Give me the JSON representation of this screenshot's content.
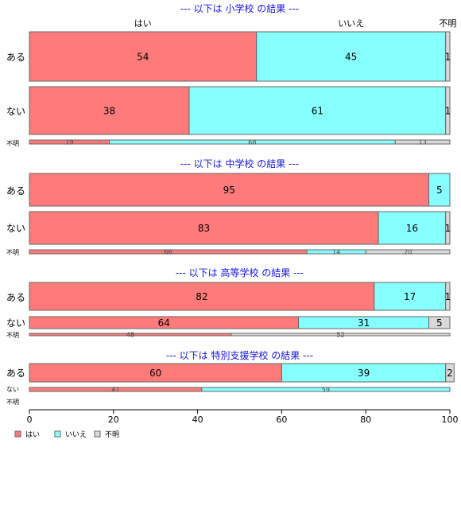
{
  "chart_data": {
    "type": "bar",
    "orientation": "horizontal",
    "stacked": "percent",
    "column_headers": [
      "はい",
      "いいえ",
      "不明"
    ],
    "xlim": [
      0,
      100
    ],
    "xticks": [
      0,
      20,
      40,
      60,
      80,
      100
    ],
    "colors": {
      "はい": "#ff7b7b",
      "いいえ": "#88ffff",
      "不明": "#d9d9d9"
    },
    "legend": {
      "placement": "bottom-left",
      "entries": [
        "はい",
        "いいえ",
        "不明"
      ]
    },
    "panels": [
      {
        "title": "--- 以下は 小学校 の結果 ---",
        "rows": [
          {
            "label": "ある",
            "values": [
              54,
              45,
              1
            ]
          },
          {
            "label": "ない",
            "values": [
              38,
              61,
              1
            ]
          },
          {
            "label": "不明",
            "values": [
              19,
              68,
              13
            ]
          }
        ]
      },
      {
        "title": "--- 以下は 中学校 の結果 ---",
        "rows": [
          {
            "label": "ある",
            "values": [
              95,
              5,
              0
            ]
          },
          {
            "label": "ない",
            "values": [
              83,
              16,
              1
            ]
          },
          {
            "label": "不明",
            "values": [
              66,
              14,
              20
            ]
          }
        ]
      },
      {
        "title": "--- 以下は 高等学校 の結果 ---",
        "rows": [
          {
            "label": "ある",
            "values": [
              82,
              17,
              1
            ]
          },
          {
            "label": "ない",
            "values": [
              64,
              31,
              5
            ]
          },
          {
            "label": "不明",
            "values": [
              48,
              0,
              52
            ]
          }
        ]
      },
      {
        "title": "--- 以下は 特別支援学校 の結果 ---",
        "rows": [
          {
            "label": "ある",
            "values": [
              60,
              39,
              2
            ]
          },
          {
            "label": "ない",
            "values": [
              41,
              59,
              0
            ]
          },
          {
            "label": "不明",
            "values": [
              0,
              0,
              0
            ]
          }
        ]
      }
    ]
  }
}
